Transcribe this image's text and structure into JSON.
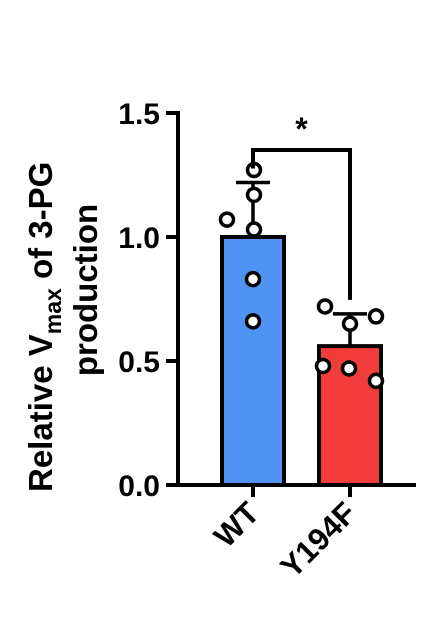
{
  "chart_data": {
    "type": "bar",
    "categories": [
      "WT",
      "Y194F"
    ],
    "values": [
      1.0,
      0.56
    ],
    "errors": [
      0.22,
      0.13
    ],
    "points": [
      [
        1.27,
        1.17,
        1.07,
        1.03,
        0.83,
        0.66
      ],
      [
        0.72,
        0.68,
        0.65,
        0.48,
        0.47,
        0.42
      ]
    ],
    "colors": [
      "#4F94F5",
      "#F23B3B"
    ],
    "ylabel_lines": [
      "Relative V",
      "max",
      " of 3-PG",
      "production"
    ],
    "yticks": [
      "0.0",
      "0.5",
      "1.0",
      "1.5"
    ],
    "ytick_values": [
      0,
      0.5,
      1.0,
      1.5
    ],
    "ylim": [
      0,
      1.5
    ],
    "significance": "*",
    "grid": false,
    "legend": "none"
  }
}
